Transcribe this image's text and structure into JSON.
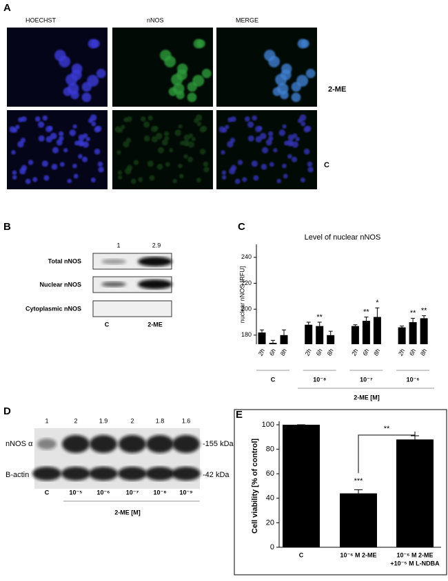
{
  "panel_labels": [
    "A",
    "B",
    "C",
    "D",
    "E"
  ],
  "panel_a": {
    "columns": [
      "HOECHST",
      "nNOS",
      "MERGE"
    ],
    "rows": [
      "2-ME",
      "C"
    ]
  },
  "panel_b": {
    "rows": [
      "Total nNOS",
      "Nuclear nNOS",
      "Cytoplasmic nNOS"
    ],
    "ratios": [
      "1",
      "2.9"
    ],
    "lanes": [
      "C",
      "2-ME"
    ]
  },
  "panel_d": {
    "rows": [
      "nNOS α",
      "B-actin"
    ],
    "sizes": [
      "-155 kDa",
      "-42 kDa"
    ],
    "ratios": [
      "1",
      "2",
      "1.9",
      "2",
      "1.8",
      "1.6"
    ],
    "lanes": [
      "C",
      "10⁻⁵",
      "10⁻⁶",
      "10⁻⁷",
      "10⁻⁸",
      "10⁻⁹"
    ],
    "lane_group": "2-ME [M]"
  },
  "chart_data": [
    {
      "type": "bar",
      "title": "Level of nuclear nNOS",
      "ylabel": "nuclear nNOS [RFU]",
      "categories": [
        "2h",
        "6h",
        "8h",
        "2h",
        "6h",
        "8h",
        "2h",
        "6h",
        "8h",
        "2h",
        "6h",
        "8h"
      ],
      "groups": [
        "C",
        "10⁻⁸",
        "10⁻⁷",
        "10⁻⁶"
      ],
      "group_title": "2-ME [M]",
      "values": [
        182,
        174,
        180,
        188,
        187,
        180,
        187,
        191,
        194,
        186,
        190,
        193
      ],
      "errors": [
        2,
        2,
        4,
        2,
        3,
        3,
        1,
        3,
        7,
        1,
        3,
        2
      ],
      "significance": [
        null,
        null,
        null,
        null,
        "**",
        null,
        null,
        "**",
        "*",
        null,
        "**",
        "**"
      ],
      "ylim": [
        173,
        250
      ],
      "yticks": [
        180,
        200,
        220,
        240
      ],
      "color": "#000000"
    },
    {
      "type": "bar",
      "ylabel": "Cell viability [% of control]",
      "categories": [
        "C",
        "10⁻⁶ M 2-ME",
        [
          "10⁻⁶ M 2-ME",
          "+10⁻⁵ M L-NDBA"
        ]
      ],
      "values": [
        100,
        44,
        88
      ],
      "errors": [
        0,
        3,
        3
      ],
      "significance": [
        null,
        "***",
        null
      ],
      "comparison_label": "**",
      "ylim": [
        0,
        100
      ],
      "yticks": [
        0,
        20,
        40,
        60,
        80,
        100
      ],
      "color": "#000000"
    }
  ]
}
